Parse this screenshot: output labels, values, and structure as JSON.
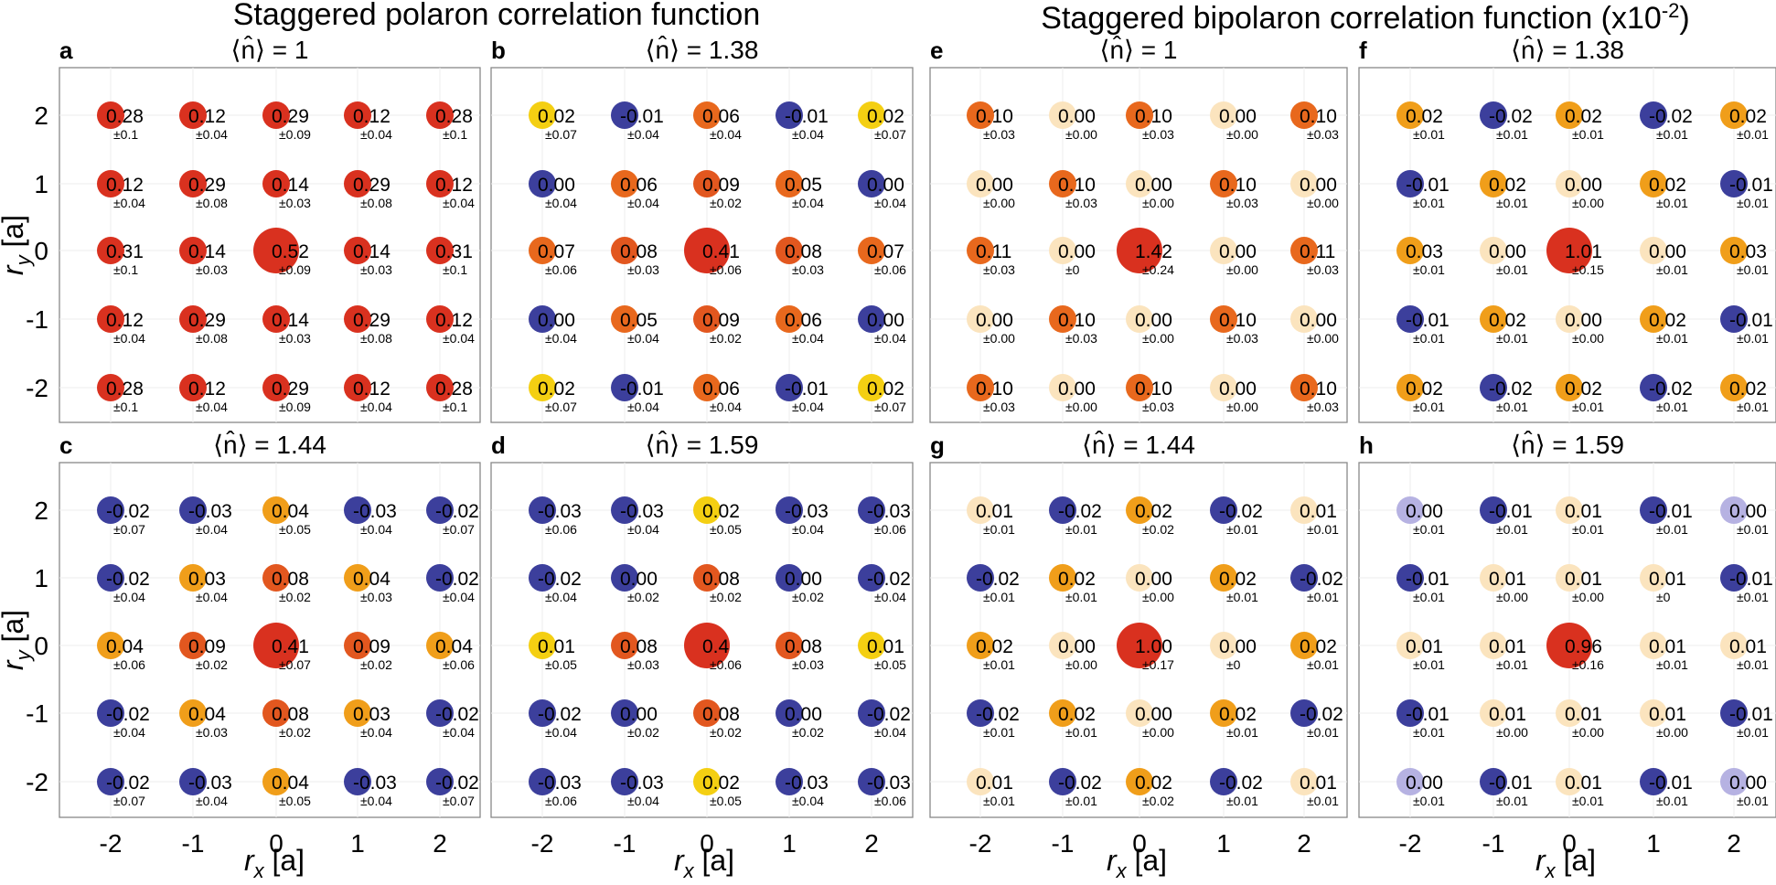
{
  "figure": {
    "left_title": "Staggered polaron correlation function",
    "right_title": "Staggered bipolaron correlation function (x10",
    "right_title_sup": "-2",
    "right_title_end": ")",
    "x_axis_label": "[a]",
    "y_axis_label": "[a]",
    "x_axis_symbol": "r",
    "x_axis_sub": "x",
    "y_axis_symbol": "r",
    "y_axis_sub": "y"
  },
  "colors": {
    "red": "#d9311f",
    "red_orange": "#e2571f",
    "orange": "#e8681d",
    "light_orange": "#f09e1a",
    "yellow": "#f4cf12",
    "peach": "#fbe4be",
    "blue": "#3c3f9c",
    "lavender": "#b6b2e2"
  },
  "chart_data": [
    {
      "letter": "a",
      "title": "⟨n̂⟩ = 1",
      "type": "scatter",
      "x_ticks": [
        "-2",
        "-1",
        "0",
        "1",
        "2"
      ],
      "y_ticks": [
        "2",
        "1",
        "0",
        "-1",
        "-2"
      ],
      "xlim": [
        -2.5,
        2.5
      ],
      "ylim": [
        -2.5,
        2.5
      ],
      "values": [
        [
          "0.28",
          "0.12",
          "0.29",
          "0.12",
          "0.28"
        ],
        [
          "0.12",
          "0.29",
          "0.14",
          "0.29",
          "0.12"
        ],
        [
          "0.31",
          "0.14",
          "0.52",
          "0.14",
          "0.31"
        ],
        [
          "0.12",
          "0.29",
          "0.14",
          "0.29",
          "0.12"
        ],
        [
          "0.28",
          "0.12",
          "0.29",
          "0.12",
          "0.28"
        ]
      ],
      "errors": [
        [
          "±0.1",
          "±0.04",
          "±0.09",
          "±0.04",
          "±0.1"
        ],
        [
          "±0.04",
          "±0.08",
          "±0.03",
          "±0.08",
          "±0.04"
        ],
        [
          "±0.1",
          "±0.03",
          "±0.09",
          "±0.03",
          "±0.1"
        ],
        [
          "±0.04",
          "±0.08",
          "±0.03",
          "±0.08",
          "±0.04"
        ],
        [
          "±0.1",
          "±0.04",
          "±0.09",
          "±0.04",
          "±0.1"
        ]
      ]
    },
    {
      "letter": "b",
      "title": "⟨n̂⟩ = 1.38",
      "type": "scatter",
      "x_ticks": [
        "-2",
        "-1",
        "0",
        "1",
        "2"
      ],
      "y_ticks": [
        "2",
        "1",
        "0",
        "-1",
        "-2"
      ],
      "xlim": [
        -2.5,
        2.5
      ],
      "ylim": [
        -2.5,
        2.5
      ],
      "values": [
        [
          "0.02",
          "-0.01",
          "0.06",
          "-0.01",
          "0.02"
        ],
        [
          "0.00",
          "0.06",
          "0.09",
          "0.05",
          "0.00"
        ],
        [
          "0.07",
          "0.08",
          "0.41",
          "0.08",
          "0.07"
        ],
        [
          "0.00",
          "0.05",
          "0.09",
          "0.06",
          "0.00"
        ],
        [
          "0.02",
          "-0.01",
          "0.06",
          "-0.01",
          "0.02"
        ]
      ],
      "errors": [
        [
          "±0.07",
          "±0.04",
          "±0.04",
          "±0.04",
          "±0.07"
        ],
        [
          "±0.04",
          "±0.04",
          "±0.02",
          "±0.04",
          "±0.04"
        ],
        [
          "±0.06",
          "±0.03",
          "±0.06",
          "±0.03",
          "±0.06"
        ],
        [
          "±0.04",
          "±0.04",
          "±0.02",
          "±0.04",
          "±0.04"
        ],
        [
          "±0.07",
          "±0.04",
          "±0.04",
          "±0.04",
          "±0.07"
        ]
      ]
    },
    {
      "letter": "e",
      "title": "⟨n̂⟩ = 1",
      "type": "scatter",
      "x_ticks": [
        "-2",
        "-1",
        "0",
        "1",
        "2"
      ],
      "y_ticks": [
        "2",
        "1",
        "0",
        "-1",
        "-2"
      ],
      "xlim": [
        -2.5,
        2.5
      ],
      "ylim": [
        -2.5,
        2.5
      ],
      "values": [
        [
          "0.10",
          "0.00",
          "0.10",
          "0.00",
          "0.10"
        ],
        [
          "0.00",
          "0.10",
          "0.00",
          "0.10",
          "0.00"
        ],
        [
          "0.11",
          "0.00",
          "1.42",
          "0.00",
          "0.11"
        ],
        [
          "0.00",
          "0.10",
          "0.00",
          "0.10",
          "0.00"
        ],
        [
          "0.10",
          "0.00",
          "0.10",
          "0.00",
          "0.10"
        ]
      ],
      "errors": [
        [
          "±0.03",
          "±0.00",
          "±0.03",
          "±0.00",
          "±0.03"
        ],
        [
          "±0.00",
          "±0.03",
          "±0.00",
          "±0.03",
          "±0.00"
        ],
        [
          "±0.03",
          "±0",
          "±0.24",
          "±0.00",
          "±0.03"
        ],
        [
          "±0.00",
          "±0.03",
          "±0.00",
          "±0.03",
          "±0.00"
        ],
        [
          "±0.03",
          "±0.00",
          "±0.03",
          "±0.00",
          "±0.03"
        ]
      ]
    },
    {
      "letter": "f",
      "title": "⟨n̂⟩ = 1.38",
      "type": "scatter",
      "x_ticks": [
        "-2",
        "-1",
        "0",
        "1",
        "2"
      ],
      "y_ticks": [
        "2",
        "1",
        "0",
        "-1",
        "-2"
      ],
      "xlim": [
        -2.5,
        2.5
      ],
      "ylim": [
        -2.5,
        2.5
      ],
      "values": [
        [
          "0.02",
          "-0.02",
          "0.02",
          "-0.02",
          "0.02"
        ],
        [
          "-0.01",
          "0.02",
          "0.00",
          "0.02",
          "-0.01"
        ],
        [
          "0.03",
          "0.00",
          "1.01",
          "0.00",
          "0.03"
        ],
        [
          "-0.01",
          "0.02",
          "0.00",
          "0.02",
          "-0.01"
        ],
        [
          "0.02",
          "-0.02",
          "0.02",
          "-0.02",
          "0.02"
        ]
      ],
      "errors": [
        [
          "±0.01",
          "±0.01",
          "±0.01",
          "±0.01",
          "±0.01"
        ],
        [
          "±0.01",
          "±0.01",
          "±0.00",
          "±0.01",
          "±0.01"
        ],
        [
          "±0.01",
          "±0.01",
          "±0.15",
          "±0.01",
          "±0.01"
        ],
        [
          "±0.01",
          "±0.01",
          "±0.00",
          "±0.01",
          "±0.01"
        ],
        [
          "±0.01",
          "±0.01",
          "±0.01",
          "±0.01",
          "±0.01"
        ]
      ]
    },
    {
      "letter": "c",
      "title": "⟨n̂⟩ = 1.44",
      "type": "scatter",
      "x_ticks": [
        "-2",
        "-1",
        "0",
        "1",
        "2"
      ],
      "y_ticks": [
        "2",
        "1",
        "0",
        "-1",
        "-2"
      ],
      "xlim": [
        -2.5,
        2.5
      ],
      "ylim": [
        -2.5,
        2.5
      ],
      "values": [
        [
          "-0.02",
          "-0.03",
          "0.04",
          "-0.03",
          "-0.02"
        ],
        [
          "-0.02",
          "0.03",
          "0.08",
          "0.04",
          "-0.02"
        ],
        [
          "0.04",
          "0.09",
          "0.41",
          "0.09",
          "0.04"
        ],
        [
          "-0.02",
          "0.04",
          "0.08",
          "0.03",
          "-0.02"
        ],
        [
          "-0.02",
          "-0.03",
          "0.04",
          "-0.03",
          "-0.02"
        ]
      ],
      "errors": [
        [
          "±0.07",
          "±0.04",
          "±0.05",
          "±0.04",
          "±0.07"
        ],
        [
          "±0.04",
          "±0.04",
          "±0.02",
          "±0.03",
          "±0.04"
        ],
        [
          "±0.06",
          "±0.02",
          "±0.07",
          "±0.02",
          "±0.06"
        ],
        [
          "±0.04",
          "±0.03",
          "±0.02",
          "±0.04",
          "±0.04"
        ],
        [
          "±0.07",
          "±0.04",
          "±0.05",
          "±0.04",
          "±0.07"
        ]
      ]
    },
    {
      "letter": "d",
      "title": "⟨n̂⟩ = 1.59",
      "type": "scatter",
      "x_ticks": [
        "-2",
        "-1",
        "0",
        "1",
        "2"
      ],
      "y_ticks": [
        "2",
        "1",
        "0",
        "-1",
        "-2"
      ],
      "xlim": [
        -2.5,
        2.5
      ],
      "ylim": [
        -2.5,
        2.5
      ],
      "values": [
        [
          "-0.03",
          "-0.03",
          "0.02",
          "-0.03",
          "-0.03"
        ],
        [
          "-0.02",
          "0.00",
          "0.08",
          "0.00",
          "-0.02"
        ],
        [
          "0.01",
          "0.08",
          "0.4",
          "0.08",
          "0.01"
        ],
        [
          "-0.02",
          "0.00",
          "0.08",
          "0.00",
          "-0.02"
        ],
        [
          "-0.03",
          "-0.03",
          "0.02",
          "-0.03",
          "-0.03"
        ]
      ],
      "errors": [
        [
          "±0.06",
          "±0.04",
          "±0.05",
          "±0.04",
          "±0.06"
        ],
        [
          "±0.04",
          "±0.02",
          "±0.02",
          "±0.02",
          "±0.04"
        ],
        [
          "±0.05",
          "±0.03",
          "±0.06",
          "±0.03",
          "±0.05"
        ],
        [
          "±0.04",
          "±0.02",
          "±0.02",
          "±0.02",
          "±0.04"
        ],
        [
          "±0.06",
          "±0.04",
          "±0.05",
          "±0.04",
          "±0.06"
        ]
      ]
    },
    {
      "letter": "g",
      "title": "⟨n̂⟩ = 1.44",
      "type": "scatter",
      "x_ticks": [
        "-2",
        "-1",
        "0",
        "1",
        "2"
      ],
      "y_ticks": [
        "2",
        "1",
        "0",
        "-1",
        "-2"
      ],
      "xlim": [
        -2.5,
        2.5
      ],
      "ylim": [
        -2.5,
        2.5
      ],
      "values": [
        [
          "0.01",
          "-0.02",
          "0.02",
          "-0.02",
          "0.01"
        ],
        [
          "-0.02",
          "0.02",
          "0.00",
          "0.02",
          "-0.02"
        ],
        [
          "0.02",
          "0.00",
          "1.00",
          "0.00",
          "0.02"
        ],
        [
          "-0.02",
          "0.02",
          "0.00",
          "0.02",
          "-0.02"
        ],
        [
          "0.01",
          "-0.02",
          "0.02",
          "-0.02",
          "0.01"
        ]
      ],
      "errors": [
        [
          "±0.01",
          "±0.01",
          "±0.02",
          "±0.01",
          "±0.01"
        ],
        [
          "±0.01",
          "±0.01",
          "±0.00",
          "±0.01",
          "±0.01"
        ],
        [
          "±0.01",
          "±0.00",
          "±0.17",
          "±0",
          "±0.01"
        ],
        [
          "±0.01",
          "±0.01",
          "±0.00",
          "±0.01",
          "±0.01"
        ],
        [
          "±0.01",
          "±0.01",
          "±0.02",
          "±0.01",
          "±0.01"
        ]
      ]
    },
    {
      "letter": "h",
      "title": "⟨n̂⟩ = 1.59",
      "type": "scatter",
      "x_ticks": [
        "-2",
        "-1",
        "0",
        "1",
        "2"
      ],
      "y_ticks": [
        "2",
        "1",
        "0",
        "-1",
        "-2"
      ],
      "xlim": [
        -2.5,
        2.5
      ],
      "ylim": [
        -2.5,
        2.5
      ],
      "values": [
        [
          "0.00",
          "-0.01",
          "0.01",
          "-0.01",
          "0.00"
        ],
        [
          "-0.01",
          "0.01",
          "0.01",
          "0.01",
          "-0.01"
        ],
        [
          "0.01",
          "0.01",
          "0.96",
          "0.01",
          "0.01"
        ],
        [
          "-0.01",
          "0.01",
          "0.01",
          "0.01",
          "-0.01"
        ],
        [
          "0.00",
          "-0.01",
          "0.01",
          "-0.01",
          "0.00"
        ]
      ],
      "errors": [
        [
          "±0.01",
          "±0.01",
          "±0.01",
          "±0.01",
          "±0.01"
        ],
        [
          "±0.01",
          "±0.00",
          "±0.00",
          "±0",
          "±0.01"
        ],
        [
          "±0.01",
          "±0.01",
          "±0.16",
          "±0.01",
          "±0.01"
        ],
        [
          "±0.01",
          "±0.00",
          "±0.00",
          "±0.00",
          "±0.01"
        ],
        [
          "±0.01",
          "±0.01",
          "±0.01",
          "±0.01",
          "±0.01"
        ]
      ]
    }
  ]
}
